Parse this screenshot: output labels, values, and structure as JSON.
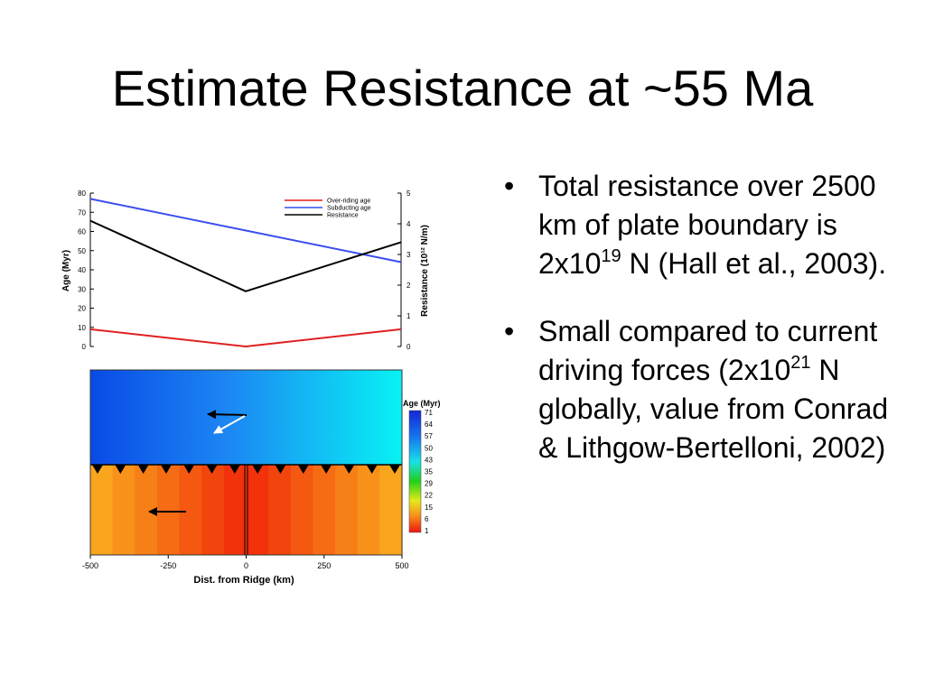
{
  "slide": {
    "title": "Estimate Resistance at ~55 Ma",
    "bullet_char": "•"
  },
  "bullets": [
    {
      "parts": [
        {
          "t": "Total resistance over 2500 km of plate boundary is 2x10"
        },
        {
          "sup": "19"
        },
        {
          "t": " N (Hall et al., 2003)."
        }
      ]
    },
    {
      "parts": [
        {
          "t": "Small compared to current driving forces (2x10"
        },
        {
          "sup": "21"
        },
        {
          "t": " N  globally, value from Conrad & Lithgow-Bertelloni, 2002)"
        }
      ]
    }
  ],
  "chart_data": [
    {
      "type": "line",
      "xlim": [
        -500,
        500
      ],
      "ylabel": "Age (Myr)",
      "ylim": [
        0,
        80
      ],
      "yticks": [
        "0",
        "10",
        "20",
        "30",
        "40",
        "50",
        "60",
        "70",
        "80"
      ],
      "y2label": "Resistance (10¹² N/m)",
      "y2lim": [
        0,
        5
      ],
      "y2ticks": [
        "0",
        "1",
        "2",
        "3",
        "4",
        "5"
      ],
      "legend_position": "top-right",
      "series": [
        {
          "name": "Over-riding age",
          "color": "#e02020",
          "axis": "left",
          "x": [
            -500,
            0,
            500
          ],
          "y": [
            9,
            0,
            9
          ]
        },
        {
          "name": "Subducting age",
          "color": "#3a4ef0",
          "axis": "left",
          "x": [
            -500,
            500
          ],
          "y": [
            77,
            44
          ]
        },
        {
          "name": "Resistance",
          "color": "#000000",
          "axis": "right",
          "x": [
            -500,
            0,
            500
          ],
          "y": [
            4.1,
            1.8,
            3.4
          ]
        }
      ]
    },
    {
      "type": "heatmap",
      "xlabel": "Dist. from Ridge (km)",
      "xlim": [
        -500,
        500
      ],
      "xticks": [
        "-500",
        "-250",
        "0",
        "250",
        "500"
      ],
      "colorbar_title": "Age (Myr)",
      "colorbar_ticks": [
        "71",
        "64",
        "57",
        "50",
        "43",
        "35",
        "29",
        "22",
        "15",
        "6",
        "1"
      ],
      "subducting_plate_age": {
        "x": [
          -500,
          500
        ],
        "age": [
          71,
          45
        ]
      },
      "overriding_plate_age": {
        "x": [
          -500,
          0,
          500
        ],
        "age": [
          9,
          1,
          9
        ]
      },
      "velocity_arrows": [
        {
          "plate": "subducting",
          "direction": "west"
        },
        {
          "plate": "subducting",
          "direction": "south-west"
        },
        {
          "plate": "overriding",
          "direction": "west"
        }
      ]
    }
  ]
}
